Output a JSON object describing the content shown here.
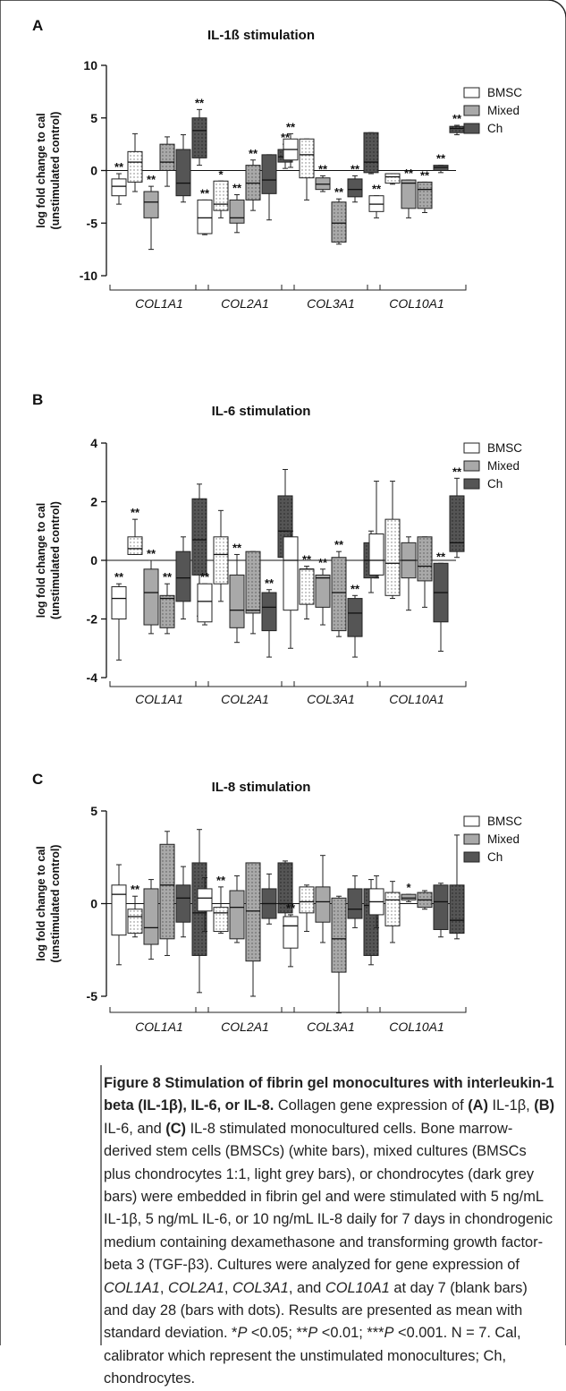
{
  "chart_data": [
    {
      "type": "box",
      "panel": "A",
      "title": "IL-1ß stimulation",
      "ylabel": "log fold change to cal (unstimulated control)",
      "ylabel_lines": [
        "log fold change to cal",
        "(unstimulated control)"
      ],
      "ylim": [
        -10,
        10
      ],
      "yticks": [
        "10",
        "5",
        "0",
        "-5",
        "-10"
      ],
      "categories": [
        "COL1A1",
        "COL2A1",
        "COL3A1",
        "COL10A1"
      ],
      "series": [
        {
          "name": "BMSC",
          "color": "#ffffff"
        },
        {
          "name": "Mixed",
          "color": "#a9a9a9"
        },
        {
          "name": "Ch",
          "color": "#555555"
        }
      ],
      "timepoints": [
        "day 7",
        "day 28"
      ],
      "boxes": [
        {
          "g": 0,
          "s": 0,
          "t": 0,
          "min": -3.2,
          "q1": -2.4,
          "med": -1.5,
          "q3": -0.8,
          "max": -0.3,
          "sig": "**"
        },
        {
          "g": 0,
          "s": 0,
          "t": 1,
          "min": -2.0,
          "q1": -1.1,
          "med": 0.8,
          "q3": 1.8,
          "max": 3.5,
          "sig": ""
        },
        {
          "g": 0,
          "s": 1,
          "t": 0,
          "min": -7.5,
          "q1": -4.5,
          "med": -3.0,
          "q3": -2.0,
          "max": -1.5,
          "sig": "**"
        },
        {
          "g": 0,
          "s": 1,
          "t": 1,
          "min": -1.5,
          "q1": 0.0,
          "med": 0.8,
          "q3": 2.5,
          "max": 3.2,
          "sig": ""
        },
        {
          "g": 0,
          "s": 2,
          "t": 0,
          "min": -3.0,
          "q1": -2.4,
          "med": -1.2,
          "q3": 2.0,
          "max": 3.4,
          "sig": ""
        },
        {
          "g": 0,
          "s": 2,
          "t": 1,
          "min": 0.5,
          "q1": 1.2,
          "med": 3.8,
          "q3": 5.0,
          "max": 5.8,
          "sig": "**"
        },
        {
          "g": 1,
          "s": 0,
          "t": 0,
          "min": -6.1,
          "q1": -6.0,
          "med": -4.5,
          "q3": -2.8,
          "max": -2.8,
          "sig": "**"
        },
        {
          "g": 1,
          "s": 0,
          "t": 1,
          "min": -4.5,
          "q1": -3.8,
          "med": -3.2,
          "q3": -1.0,
          "max": -1.0,
          "sig": "*"
        },
        {
          "g": 1,
          "s": 1,
          "t": 0,
          "min": -5.9,
          "q1": -5.0,
          "med": -4.5,
          "q3": -2.8,
          "max": -2.3,
          "sig": "**"
        },
        {
          "g": 1,
          "s": 1,
          "t": 1,
          "min": -3.8,
          "q1": -2.8,
          "med": -1.2,
          "q3": 0.5,
          "max": 1.0,
          "sig": "**"
        },
        {
          "g": 1,
          "s": 2,
          "t": 0,
          "min": -4.7,
          "q1": -2.2,
          "med": -0.9,
          "q3": 1.5,
          "max": 1.5,
          "sig": ""
        },
        {
          "g": 1,
          "s": 2,
          "t": 1,
          "min": 0.2,
          "q1": 0.8,
          "med": 1.3,
          "q3": 2.0,
          "max": 2.5,
          "sig": "**"
        },
        {
          "g": 2,
          "s": 0,
          "t": 0,
          "min": 0.3,
          "q1": 1.0,
          "med": 2.0,
          "q3": 3.0,
          "max": 3.5,
          "sig": "**"
        },
        {
          "g": 2,
          "s": 0,
          "t": 1,
          "min": -2.8,
          "q1": -0.7,
          "med": 1.5,
          "q3": 3.0,
          "max": 3.0,
          "sig": ""
        },
        {
          "g": 2,
          "s": 1,
          "t": 0,
          "min": -2.0,
          "q1": -1.8,
          "med": -1.3,
          "q3": -0.7,
          "max": -0.5,
          "sig": "**"
        },
        {
          "g": 2,
          "s": 1,
          "t": 1,
          "min": -7.0,
          "q1": -6.8,
          "med": -5.0,
          "q3": -3.0,
          "max": -2.7,
          "sig": "**"
        },
        {
          "g": 2,
          "s": 2,
          "t": 0,
          "min": -3.0,
          "q1": -2.5,
          "med": -1.8,
          "q3": -0.8,
          "max": -0.5,
          "sig": "**"
        },
        {
          "g": 2,
          "s": 2,
          "t": 1,
          "min": -0.3,
          "q1": -0.2,
          "med": 0.8,
          "q3": 3.6,
          "max": 3.6,
          "sig": ""
        },
        {
          "g": 3,
          "s": 0,
          "t": 0,
          "min": -4.5,
          "q1": -3.9,
          "med": -3.2,
          "q3": -2.4,
          "max": -2.4,
          "sig": "**"
        },
        {
          "g": 3,
          "s": 0,
          "t": 1,
          "min": -1.3,
          "q1": -1.2,
          "med": -0.6,
          "q3": -0.3,
          "max": -0.3,
          "sig": ""
        },
        {
          "g": 3,
          "s": 1,
          "t": 0,
          "min": -4.5,
          "q1": -3.6,
          "med": -1.2,
          "q3": -0.9,
          "max": -0.9,
          "sig": "**"
        },
        {
          "g": 3,
          "s": 1,
          "t": 1,
          "min": -4.0,
          "q1": -3.6,
          "med": -1.8,
          "q3": -1.1,
          "max": -1.1,
          "sig": "**"
        },
        {
          "g": 3,
          "s": 2,
          "t": 0,
          "min": -0.2,
          "q1": 0.0,
          "med": 0.3,
          "q3": 0.5,
          "max": 0.5,
          "sig": "**"
        },
        {
          "g": 3,
          "s": 2,
          "t": 1,
          "min": 3.4,
          "q1": 3.6,
          "med": 4.0,
          "q3": 4.2,
          "max": 4.3,
          "sig": "**"
        }
      ]
    },
    {
      "type": "box",
      "panel": "B",
      "title": "IL-6 stimulation",
      "ylabel": "log fold change to cal (unstimulated control)",
      "ylabel_lines": [
        "log fold change to cal",
        "(unstimulated control)"
      ],
      "ylim": [
        -4,
        4
      ],
      "yticks": [
        "4",
        "2",
        "0",
        "-2",
        "-4"
      ],
      "categories": [
        "COL1A1",
        "COL2A1",
        "COL3A1",
        "COL10A1"
      ],
      "series": [
        {
          "name": "BMSC",
          "color": "#ffffff"
        },
        {
          "name": "Mixed",
          "color": "#a9a9a9"
        },
        {
          "name": "Ch",
          "color": "#555555"
        }
      ],
      "timepoints": [
        "day 7",
        "day 28"
      ],
      "boxes": [
        {
          "g": 0,
          "s": 0,
          "t": 0,
          "min": -3.4,
          "q1": -2.0,
          "med": -1.3,
          "q3": -0.9,
          "max": -0.8,
          "sig": "**"
        },
        {
          "g": 0,
          "s": 0,
          "t": 1,
          "min": 0.2,
          "q1": 0.2,
          "med": 0.4,
          "q3": 0.8,
          "max": 1.4,
          "sig": "**"
        },
        {
          "g": 0,
          "s": 1,
          "t": 0,
          "min": -2.5,
          "q1": -2.2,
          "med": -1.1,
          "q3": -0.3,
          "max": 0.0,
          "sig": "**"
        },
        {
          "g": 0,
          "s": 1,
          "t": 1,
          "min": -2.5,
          "q1": -2.3,
          "med": -1.3,
          "q3": -1.2,
          "max": -0.8,
          "sig": "**"
        },
        {
          "g": 0,
          "s": 2,
          "t": 0,
          "min": -2.0,
          "q1": -1.4,
          "med": -0.6,
          "q3": 0.3,
          "max": 0.8,
          "sig": ""
        },
        {
          "g": 0,
          "s": 2,
          "t": 1,
          "min": -1.9,
          "q1": -0.5,
          "med": 0.7,
          "q3": 2.1,
          "max": 2.6,
          "sig": ""
        },
        {
          "g": 1,
          "s": 0,
          "t": 0,
          "min": -2.2,
          "q1": -2.1,
          "med": -1.4,
          "q3": -0.8,
          "max": -0.8,
          "sig": "**"
        },
        {
          "g": 1,
          "s": 0,
          "t": 1,
          "min": -1.4,
          "q1": -0.8,
          "med": 0.2,
          "q3": 0.8,
          "max": 1.7,
          "sig": ""
        },
        {
          "g": 1,
          "s": 1,
          "t": 0,
          "min": -2.8,
          "q1": -2.3,
          "med": -1.7,
          "q3": -0.5,
          "max": 0.2,
          "sig": "**"
        },
        {
          "g": 1,
          "s": 1,
          "t": 1,
          "min": -2.5,
          "q1": -1.8,
          "med": -1.7,
          "q3": 0.3,
          "max": 0.3,
          "sig": ""
        },
        {
          "g": 1,
          "s": 2,
          "t": 0,
          "min": -3.3,
          "q1": -2.4,
          "med": -1.6,
          "q3": -1.1,
          "max": -1.0,
          "sig": "**"
        },
        {
          "g": 1,
          "s": 2,
          "t": 1,
          "min": 0.0,
          "q1": 0.1,
          "med": 1.0,
          "q3": 2.2,
          "max": 3.1,
          "sig": ""
        },
        {
          "g": 2,
          "s": 0,
          "t": 0,
          "min": -3.0,
          "q1": -1.7,
          "med": 0.0,
          "q3": 0.8,
          "max": 1.0,
          "sig": ""
        },
        {
          "g": 2,
          "s": 0,
          "t": 1,
          "min": -2.0,
          "q1": -1.5,
          "med": -0.3,
          "q3": -0.3,
          "max": -0.2,
          "sig": "**"
        },
        {
          "g": 2,
          "s": 1,
          "t": 0,
          "min": -2.2,
          "q1": -1.6,
          "med": -0.6,
          "q3": -0.5,
          "max": -0.3,
          "sig": "**"
        },
        {
          "g": 2,
          "s": 1,
          "t": 1,
          "min": -2.6,
          "q1": -2.4,
          "med": -1.1,
          "q3": 0.1,
          "max": 0.3,
          "sig": "**"
        },
        {
          "g": 2,
          "s": 2,
          "t": 0,
          "min": -3.3,
          "q1": -2.6,
          "med": -1.8,
          "q3": -1.3,
          "max": -1.2,
          "sig": "**"
        },
        {
          "g": 2,
          "s": 2,
          "t": 1,
          "min": -1.1,
          "q1": -0.6,
          "med": 0.0,
          "q3": 0.6,
          "max": 1.0,
          "sig": ""
        },
        {
          "g": 3,
          "s": 0,
          "t": 0,
          "min": -0.6,
          "q1": -0.5,
          "med": 0.0,
          "q3": 0.9,
          "max": 2.7,
          "sig": ""
        },
        {
          "g": 3,
          "s": 0,
          "t": 1,
          "min": -1.3,
          "q1": -1.2,
          "med": -0.1,
          "q3": 1.4,
          "max": 2.7,
          "sig": ""
        },
        {
          "g": 3,
          "s": 1,
          "t": 0,
          "min": -1.7,
          "q1": -0.6,
          "med": 0.0,
          "q3": 0.6,
          "max": 0.8,
          "sig": ""
        },
        {
          "g": 3,
          "s": 1,
          "t": 1,
          "min": -1.6,
          "q1": -0.7,
          "med": -0.2,
          "q3": 0.8,
          "max": 0.8,
          "sig": ""
        },
        {
          "g": 3,
          "s": 2,
          "t": 0,
          "min": -3.1,
          "q1": -2.1,
          "med": -1.1,
          "q3": -0.1,
          "max": -0.1,
          "sig": "**"
        },
        {
          "g": 3,
          "s": 2,
          "t": 1,
          "min": 0.1,
          "q1": 0.3,
          "med": 0.6,
          "q3": 2.2,
          "max": 2.8,
          "sig": "**"
        }
      ]
    },
    {
      "type": "box",
      "panel": "C",
      "title": "IL-8 stimulation",
      "ylabel": "log fold change to cal (unstimulated control)",
      "ylabel_lines": [
        "log fold change to cal",
        "(unstimulated control)"
      ],
      "ylim": [
        -6,
        5
      ],
      "yticks": [
        "5",
        "0",
        "-5"
      ],
      "categories": [
        "COL1A1",
        "COL2A1",
        "COL3A1",
        "COL10A1"
      ],
      "series": [
        {
          "name": "BMSC",
          "color": "#ffffff"
        },
        {
          "name": "Mixed",
          "color": "#a9a9a9"
        },
        {
          "name": "Ch",
          "color": "#555555"
        }
      ],
      "timepoints": [
        "day 7",
        "day 28"
      ],
      "boxes": [
        {
          "g": 0,
          "s": 0,
          "t": 0,
          "min": -3.3,
          "q1": -1.7,
          "med": 0.5,
          "q3": 1.0,
          "max": 2.1,
          "sig": ""
        },
        {
          "g": 0,
          "s": 0,
          "t": 1,
          "min": -1.8,
          "q1": -1.6,
          "med": -0.7,
          "q3": -0.3,
          "max": 0.4,
          "sig": "**"
        },
        {
          "g": 0,
          "s": 1,
          "t": 0,
          "min": -3.0,
          "q1": -2.2,
          "med": -1.3,
          "q3": 0.8,
          "max": 1.3,
          "sig": ""
        },
        {
          "g": 0,
          "s": 1,
          "t": 1,
          "min": -2.8,
          "q1": -1.9,
          "med": 1.0,
          "q3": 3.2,
          "max": 3.9,
          "sig": ""
        },
        {
          "g": 0,
          "s": 2,
          "t": 0,
          "min": -1.8,
          "q1": -1.0,
          "med": 0.3,
          "q3": 1.0,
          "max": 2.0,
          "sig": ""
        },
        {
          "g": 0,
          "s": 2,
          "t": 1,
          "min": -4.8,
          "q1": -2.8,
          "med": -0.5,
          "q3": 2.2,
          "max": 4.0,
          "sig": ""
        },
        {
          "g": 1,
          "s": 0,
          "t": 0,
          "min": -1.5,
          "q1": -0.4,
          "med": 0.3,
          "q3": 0.8,
          "max": 1.4,
          "sig": ""
        },
        {
          "g": 1,
          "s": 0,
          "t": 1,
          "min": -1.6,
          "q1": -1.5,
          "med": -0.5,
          "q3": -0.2,
          "max": 0.9,
          "sig": "**"
        },
        {
          "g": 1,
          "s": 1,
          "t": 0,
          "min": -2.1,
          "q1": -1.9,
          "med": -0.2,
          "q3": 0.7,
          "max": 1.5,
          "sig": ""
        },
        {
          "g": 1,
          "s": 1,
          "t": 1,
          "min": -5.0,
          "q1": -3.1,
          "med": -0.4,
          "q3": 2.2,
          "max": 2.2,
          "sig": ""
        },
        {
          "g": 1,
          "s": 2,
          "t": 0,
          "min": -1.1,
          "q1": -0.8,
          "med": 0.0,
          "q3": 0.8,
          "max": 1.6,
          "sig": ""
        },
        {
          "g": 1,
          "s": 2,
          "t": 1,
          "min": -1.2,
          "q1": -0.5,
          "med": 0.0,
          "q3": 2.2,
          "max": 2.3,
          "sig": ""
        },
        {
          "g": 2,
          "s": 0,
          "t": 0,
          "min": -3.4,
          "q1": -2.4,
          "med": -1.2,
          "q3": -0.7,
          "max": -0.6,
          "sig": "**"
        },
        {
          "g": 2,
          "s": 0,
          "t": 1,
          "min": -1.5,
          "q1": -0.5,
          "med": 0.1,
          "q3": 0.9,
          "max": 1.0,
          "sig": ""
        },
        {
          "g": 2,
          "s": 1,
          "t": 0,
          "min": -2.1,
          "q1": -1.0,
          "med": 0.1,
          "q3": 0.9,
          "max": 2.6,
          "sig": ""
        },
        {
          "g": 2,
          "s": 1,
          "t": 1,
          "min": -5.9,
          "q1": -3.7,
          "med": -1.9,
          "q3": 0.3,
          "max": 0.4,
          "sig": ""
        },
        {
          "g": 2,
          "s": 2,
          "t": 0,
          "min": -1.3,
          "q1": -0.8,
          "med": -0.3,
          "q3": 0.8,
          "max": 1.5,
          "sig": ""
        },
        {
          "g": 2,
          "s": 2,
          "t": 1,
          "min": -3.3,
          "q1": -2.8,
          "med": -0.1,
          "q3": 0.8,
          "max": 1.3,
          "sig": ""
        },
        {
          "g": 3,
          "s": 0,
          "t": 0,
          "min": -1.3,
          "q1": -0.6,
          "med": 0.1,
          "q3": 0.8,
          "max": 1.5,
          "sig": ""
        },
        {
          "g": 3,
          "s": 0,
          "t": 1,
          "min": -2.1,
          "q1": -1.2,
          "med": 0.2,
          "q3": 0.6,
          "max": 1.2,
          "sig": ""
        },
        {
          "g": 3,
          "s": 1,
          "t": 0,
          "min": 0.1,
          "q1": 0.2,
          "med": 0.3,
          "q3": 0.5,
          "max": 0.5,
          "sig": "*"
        },
        {
          "g": 3,
          "s": 1,
          "t": 1,
          "min": -0.3,
          "q1": -0.2,
          "med": 0.2,
          "q3": 0.6,
          "max": 0.7,
          "sig": ""
        },
        {
          "g": 3,
          "s": 2,
          "t": 0,
          "min": -1.8,
          "q1": -1.4,
          "med": 0.1,
          "q3": 1.0,
          "max": 1.1,
          "sig": ""
        },
        {
          "g": 3,
          "s": 2,
          "t": 1,
          "min": -1.9,
          "q1": -1.6,
          "med": -0.9,
          "q3": 1.0,
          "max": 3.7,
          "sig": ""
        }
      ]
    }
  ],
  "caption": {
    "label": "Figure 8",
    "title": "Stimulation of fibrin gel monocultures with interleukin-1 beta (IL-1β), IL-6, or IL-8.",
    "parts": [
      {
        "t": " Collagen gene expression of ",
        "s": ""
      },
      {
        "t": "(A)",
        "s": "b"
      },
      {
        "t": " IL-1β, ",
        "s": ""
      },
      {
        "t": "(B)",
        "s": "b"
      },
      {
        "t": " IL-6, and ",
        "s": ""
      },
      {
        "t": "(C)",
        "s": "b"
      },
      {
        "t": " IL-8 stimulated monocultured cells. Bone marrow-derived stem cells (BMSCs) (white bars), mixed cultures (BMSCs plus chondrocytes 1:1, light grey bars), or chondrocytes (dark grey bars) were embedded in fibrin gel and were stimulated with 5 ng/mL IL-1β, 5 ng/mL IL-6, or 10 ng/mL IL-8 daily for 7 days in chondrogenic medium containing dexamethasone and transforming growth factor-beta 3 (TGF-β3). Cultures were analyzed for gene expression of ",
        "s": ""
      },
      {
        "t": "COL1A1",
        "s": "i"
      },
      {
        "t": ", ",
        "s": ""
      },
      {
        "t": "COL2A1",
        "s": "i"
      },
      {
        "t": ", ",
        "s": ""
      },
      {
        "t": "COL3A1",
        "s": "i"
      },
      {
        "t": ", and ",
        "s": ""
      },
      {
        "t": "COL10A1",
        "s": "i"
      },
      {
        "t": " at day 7 (blank bars) and day 28 (bars with dots). Results are presented as mean with standard deviation. *",
        "s": ""
      },
      {
        "t": "P",
        "s": "i"
      },
      {
        "t": " <0.05; **",
        "s": ""
      },
      {
        "t": "P",
        "s": "i"
      },
      {
        "t": " <0.01; ***",
        "s": ""
      },
      {
        "t": "P",
        "s": "i"
      },
      {
        "t": " <0.001. N = 7. Cal, calibrator which represent the unstimulated monocultures; Ch, chondrocytes.",
        "s": ""
      }
    ]
  }
}
